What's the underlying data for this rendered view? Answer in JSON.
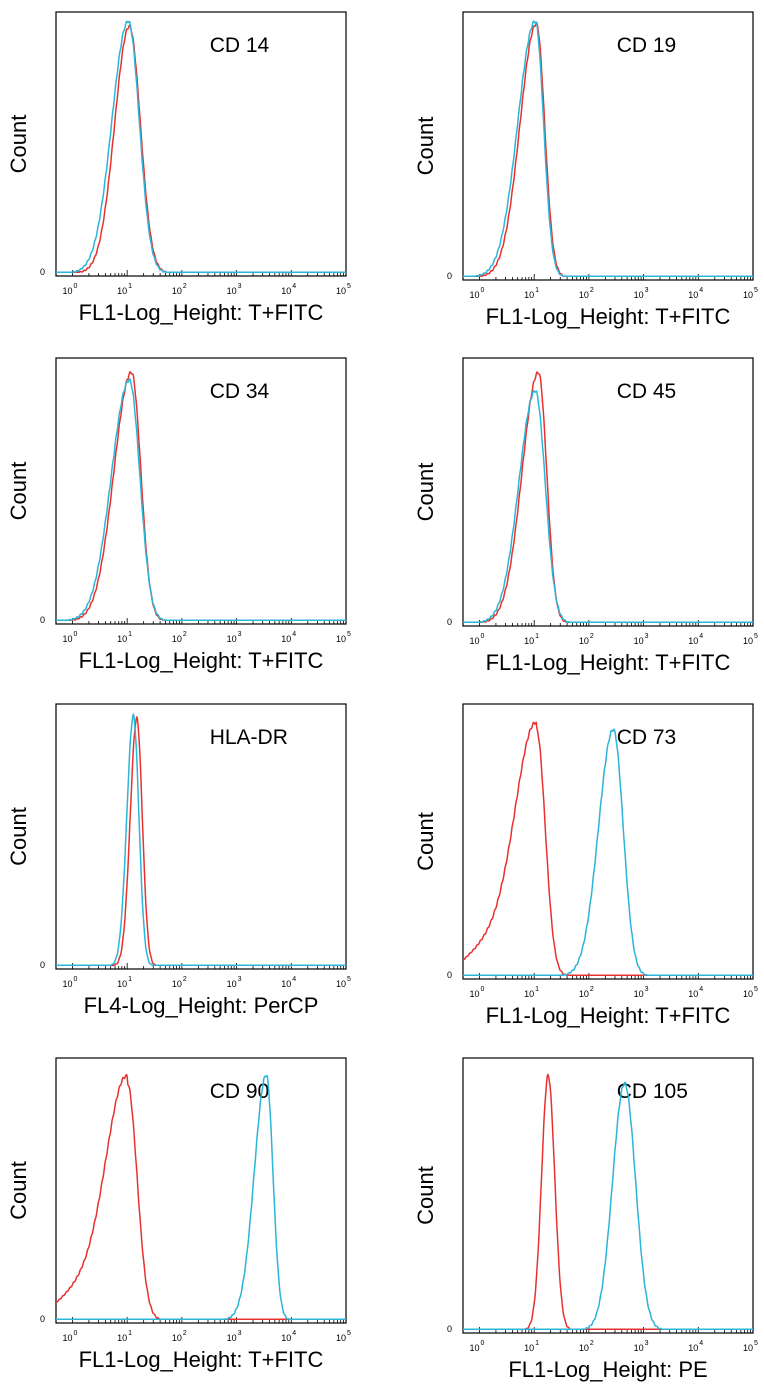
{
  "chart_data": [
    {
      "type": "line",
      "label": "CD 14",
      "ylabel": "Count",
      "xlabel": "FL1-Log_Height: T+FITC",
      "x_scale": "log",
      "xlim": [
        0.5,
        100000
      ],
      "y_zero_label": "0",
      "x_tick_labels": [
        "10",
        "10",
        "10",
        "10",
        "10",
        "10"
      ],
      "x_tick_exponents": [
        "0",
        "1",
        "2",
        "3",
        "4",
        "5"
      ],
      "series": [
        {
          "color": "#e8312f",
          "peak_x": 11,
          "peak_height": 0.96,
          "width_left": 0.27,
          "width_right": 0.2,
          "baseline_mode": "low"
        },
        {
          "color": "#2bb5d8",
          "peak_x": 10.5,
          "peak_height": 0.98,
          "width_left": 0.3,
          "width_right": 0.2,
          "baseline_mode": "low"
        }
      ]
    },
    {
      "type": "line",
      "label": "CD 19",
      "ylabel": "Count",
      "xlabel": "FL1-Log_Height: T+FITC",
      "x_scale": "log",
      "xlim": [
        0.5,
        100000
      ],
      "y_zero_label": "0",
      "x_tick_labels": [
        "10",
        "10",
        "10",
        "10",
        "10",
        "10"
      ],
      "x_tick_exponents": [
        "0",
        "1",
        "2",
        "3",
        "4",
        "5"
      ],
      "series": [
        {
          "color": "#e8312f",
          "peak_x": 11,
          "peak_height": 0.97,
          "width_left": 0.3,
          "width_right": 0.15,
          "baseline_mode": "low"
        },
        {
          "color": "#2bb5d8",
          "peak_x": 10.5,
          "peak_height": 0.98,
          "width_left": 0.32,
          "width_right": 0.15,
          "baseline_mode": "low"
        }
      ]
    },
    {
      "type": "line",
      "label": "CD 34",
      "ylabel": "Count",
      "xlabel": "FL1-Log_Height: T+FITC",
      "x_scale": "log",
      "xlim": [
        0.5,
        100000
      ],
      "y_zero_label": "0",
      "x_tick_labels": [
        "10",
        "10",
        "10",
        "10",
        "10",
        "10"
      ],
      "x_tick_exponents": [
        "0",
        "1",
        "2",
        "3",
        "4",
        "5"
      ],
      "series": [
        {
          "color": "#e8312f",
          "peak_x": 12,
          "peak_height": 0.96,
          "width_left": 0.32,
          "width_right": 0.17,
          "baseline_mode": "low"
        },
        {
          "color": "#2bb5d8",
          "peak_x": 11,
          "peak_height": 0.93,
          "width_left": 0.33,
          "width_right": 0.19,
          "baseline_mode": "low"
        }
      ]
    },
    {
      "type": "line",
      "label": "CD 45",
      "ylabel": "Count",
      "xlabel": "FL1-Log_Height: T+FITC",
      "x_scale": "log",
      "xlim": [
        0.5,
        100000
      ],
      "y_zero_label": "0",
      "x_tick_labels": [
        "10",
        "10",
        "10",
        "10",
        "10",
        "10"
      ],
      "x_tick_exponents": [
        "0",
        "1",
        "2",
        "3",
        "4",
        "5"
      ],
      "series": [
        {
          "color": "#e8312f",
          "peak_x": 12,
          "peak_height": 0.96,
          "width_left": 0.3,
          "width_right": 0.15,
          "baseline_mode": "low"
        },
        {
          "color": "#2bb5d8",
          "peak_x": 10.5,
          "peak_height": 0.89,
          "width_left": 0.3,
          "width_right": 0.18,
          "baseline_mode": "low"
        }
      ]
    },
    {
      "type": "line",
      "label": "HLA-DR",
      "ylabel": "Count",
      "xlabel": "FL4-Log_Height: PerCP",
      "x_scale": "log",
      "xlim": [
        0.5,
        100000
      ],
      "y_zero_label": "0",
      "x_tick_labels": [
        "10",
        "10",
        "10",
        "10",
        "10",
        "10"
      ],
      "x_tick_exponents": [
        "0",
        "1",
        "2",
        "3",
        "4",
        "5"
      ],
      "series": [
        {
          "color": "#e8312f",
          "peak_x": 15,
          "peak_height": 0.96,
          "width_left": 0.12,
          "width_right": 0.1,
          "baseline_mode": "low"
        },
        {
          "color": "#2bb5d8",
          "peak_x": 13,
          "peak_height": 0.97,
          "width_left": 0.12,
          "width_right": 0.1,
          "baseline_mode": "low"
        }
      ]
    },
    {
      "type": "line",
      "label": "CD 73",
      "ylabel": "Count",
      "xlabel": "FL1-Log_Height: T+FITC",
      "x_scale": "log",
      "xlim": [
        0.5,
        100000
      ],
      "y_zero_label": "0",
      "x_tick_labels": [
        "10",
        "10",
        "10",
        "10",
        "10",
        "10"
      ],
      "x_tick_exponents": [
        "0",
        "1",
        "2",
        "3",
        "4",
        "5"
      ],
      "series": [
        {
          "color": "#e8312f",
          "peak_x": 11,
          "peak_height": 0.92,
          "width_left": 0.38,
          "width_right": 0.16,
          "baseline_mode": "red_wide"
        },
        {
          "color": "#2bb5d8",
          "peak_x": 280,
          "peak_height": 0.92,
          "width_left": 0.27,
          "width_right": 0.18,
          "baseline_mode": "low"
        }
      ]
    },
    {
      "type": "line",
      "label": "CD 90",
      "ylabel": "Count",
      "xlabel": "FL1-Log_Height: T+FITC",
      "x_scale": "log",
      "xlim": [
        0.5,
        100000
      ],
      "y_zero_label": "0",
      "x_tick_labels": [
        "10",
        "10",
        "10",
        "10",
        "10",
        "10"
      ],
      "x_tick_exponents": [
        "0",
        "1",
        "2",
        "3",
        "4",
        "5"
      ],
      "series": [
        {
          "color": "#e8312f",
          "peak_x": 10,
          "peak_height": 0.92,
          "width_left": 0.38,
          "width_right": 0.18,
          "baseline_mode": "red_wide"
        },
        {
          "color": "#2bb5d8",
          "peak_x": 3500,
          "peak_height": 0.95,
          "width_left": 0.22,
          "width_right": 0.12,
          "baseline_mode": "low"
        }
      ]
    },
    {
      "type": "line",
      "label": "CD 105",
      "ylabel": "Count",
      "xlabel": "FL1-Log_Height:  PE",
      "x_scale": "log",
      "xlim": [
        0.5,
        100000
      ],
      "y_zero_label": "0",
      "x_tick_labels": [
        "10",
        "10",
        "10",
        "10",
        "10",
        "10"
      ],
      "x_tick_exponents": [
        "0",
        "1",
        "2",
        "3",
        "4",
        "5"
      ],
      "series": [
        {
          "color": "#e8312f",
          "peak_x": 18,
          "peak_height": 0.95,
          "width_left": 0.12,
          "width_right": 0.12,
          "baseline_mode": "low"
        },
        {
          "color": "#2bb5d8",
          "peak_x": 450,
          "peak_height": 0.92,
          "width_left": 0.22,
          "width_right": 0.2,
          "baseline_mode": "low"
        }
      ]
    }
  ]
}
